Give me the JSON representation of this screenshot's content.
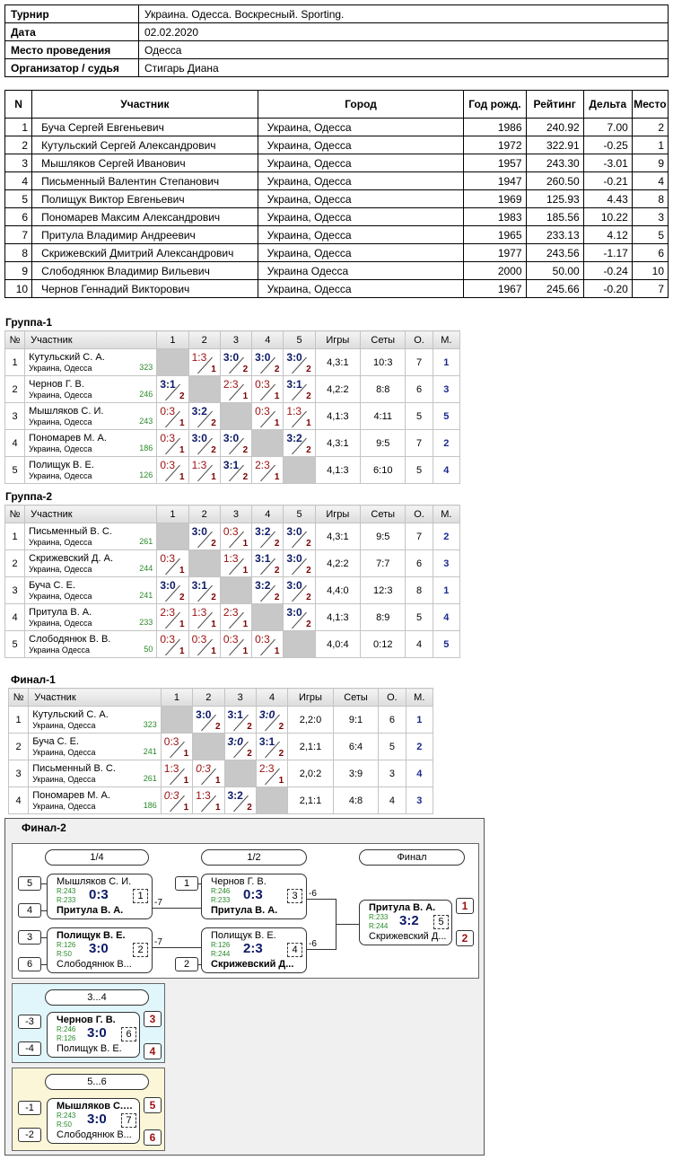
{
  "info": {
    "rows": [
      {
        "k": "Турнир",
        "v": "Украина. Одесса. Воскресный. Sporting."
      },
      {
        "k": "Дата",
        "v": "02.02.2020"
      },
      {
        "k": "Место проведения",
        "v": "Одесса"
      },
      {
        "k": "Организатор / судья",
        "v": "Стигарь Диана"
      }
    ]
  },
  "participants": {
    "headers": [
      "N",
      "Участник",
      "Город",
      "Год рожд.",
      "Рейтинг",
      "Дельта",
      "Место"
    ],
    "rows": [
      [
        "1",
        "Буча Сергей Евгеньевич",
        "Украина, Одесса",
        "1986",
        "240.92",
        "7.00",
        "2"
      ],
      [
        "2",
        "Кутульский Сергей Александрович",
        "Украина, Одесса",
        "1972",
        "322.91",
        "-0.25",
        "1"
      ],
      [
        "3",
        "Мышляков Сергей Иванович",
        "Украина, Одесса",
        "1957",
        "243.30",
        "-3.01",
        "9"
      ],
      [
        "4",
        "Письменный Валентин Степанович",
        "Украина, Одесса",
        "1947",
        "260.50",
        "-0.21",
        "4"
      ],
      [
        "5",
        "Полищук Виктор Евгеньевич",
        "Украина, Одесса",
        "1969",
        "125.93",
        "4.43",
        "8"
      ],
      [
        "6",
        "Пономарев Максим Александрович",
        "Украина, Одесса",
        "1983",
        "185.56",
        "10.22",
        "3"
      ],
      [
        "7",
        "Притула Владимир Андреевич",
        "Украина, Одесса",
        "1965",
        "233.13",
        "4.12",
        "5"
      ],
      [
        "8",
        "Скрижевский Дмитрий Александрович",
        "Украина, Одесса",
        "1977",
        "243.56",
        "-1.17",
        "6"
      ],
      [
        "9",
        "Слободянюк Владимир Вильевич",
        "Украина Одесса",
        "2000",
        "50.00",
        "-0.24",
        "10"
      ],
      [
        "10",
        "Чернов Геннадий Викторович",
        "Украина, Одесса",
        "1967",
        "245.66",
        "-0.20",
        "7"
      ]
    ]
  },
  "groups": [
    {
      "title": "Группа-1",
      "headers": [
        "№",
        "Участник",
        "1",
        "2",
        "3",
        "4",
        "5",
        "Игры",
        "Сеты",
        "О.",
        "М."
      ],
      "rows": [
        {
          "n": "1",
          "name": "Кутульский С. А.",
          "city": "Украина, Одесса",
          "rating": "323",
          "cells": [
            null,
            [
              "1:3",
              "1",
              "l"
            ],
            [
              "3:0",
              "2",
              "w"
            ],
            [
              "3:0",
              "2",
              "w"
            ],
            [
              "3:0",
              "2",
              "w"
            ]
          ],
          "games": "4,3:1",
          "sets": "10:3",
          "pts": "7",
          "place": "1"
        },
        {
          "n": "2",
          "name": "Чернов Г. В.",
          "city": "Украина, Одесса",
          "rating": "246",
          "cells": [
            [
              "3:1",
              "2",
              "w"
            ],
            null,
            [
              "2:3",
              "1",
              "l"
            ],
            [
              "0:3",
              "1",
              "l"
            ],
            [
              "3:1",
              "2",
              "w"
            ]
          ],
          "games": "4,2:2",
          "sets": "8:8",
          "pts": "6",
          "place": "3"
        },
        {
          "n": "3",
          "name": "Мышляков С. И.",
          "city": "Украина, Одесса",
          "rating": "243",
          "cells": [
            [
              "0:3",
              "1",
              "l"
            ],
            [
              "3:2",
              "2",
              "w"
            ],
            null,
            [
              "0:3",
              "1",
              "l"
            ],
            [
              "1:3",
              "1",
              "l"
            ]
          ],
          "games": "4,1:3",
          "sets": "4:11",
          "pts": "5",
          "place": "5"
        },
        {
          "n": "4",
          "name": "Пономарев М. А.",
          "city": "Украина, Одесса",
          "rating": "186",
          "cells": [
            [
              "0:3",
              "1",
              "l"
            ],
            [
              "3:0",
              "2",
              "w"
            ],
            [
              "3:0",
              "2",
              "w"
            ],
            null,
            [
              "3:2",
              "2",
              "w"
            ]
          ],
          "games": "4,3:1",
          "sets": "9:5",
          "pts": "7",
          "place": "2"
        },
        {
          "n": "5",
          "name": "Полищук В. Е.",
          "city": "Украина, Одесса",
          "rating": "126",
          "cells": [
            [
              "0:3",
              "1",
              "l"
            ],
            [
              "1:3",
              "1",
              "l"
            ],
            [
              "3:1",
              "2",
              "w"
            ],
            [
              "2:3",
              "1",
              "l"
            ],
            null
          ],
          "games": "4,1:3",
          "sets": "6:10",
          "pts": "5",
          "place": "4"
        }
      ]
    },
    {
      "title": "Группа-2",
      "headers": [
        "№",
        "Участник",
        "1",
        "2",
        "3",
        "4",
        "5",
        "Игры",
        "Сеты",
        "О.",
        "М."
      ],
      "rows": [
        {
          "n": "1",
          "name": "Письменный В. С.",
          "city": "Украина, Одесса",
          "rating": "261",
          "cells": [
            null,
            [
              "3:0",
              "2",
              "w"
            ],
            [
              "0:3",
              "1",
              "l"
            ],
            [
              "3:2",
              "2",
              "w"
            ],
            [
              "3:0",
              "2",
              "w"
            ]
          ],
          "games": "4,3:1",
          "sets": "9:5",
          "pts": "7",
          "place": "2"
        },
        {
          "n": "2",
          "name": "Скрижевский Д. А.",
          "city": "Украина, Одесса",
          "rating": "244",
          "cells": [
            [
              "0:3",
              "1",
              "l"
            ],
            null,
            [
              "1:3",
              "1",
              "l"
            ],
            [
              "3:1",
              "2",
              "w"
            ],
            [
              "3:0",
              "2",
              "w"
            ]
          ],
          "games": "4,2:2",
          "sets": "7:7",
          "pts": "6",
          "place": "3"
        },
        {
          "n": "3",
          "name": "Буча С. Е.",
          "city": "Украина, Одесса",
          "rating": "241",
          "cells": [
            [
              "3:0",
              "2",
              "w"
            ],
            [
              "3:1",
              "2",
              "w"
            ],
            null,
            [
              "3:2",
              "2",
              "w"
            ],
            [
              "3:0",
              "2",
              "w"
            ]
          ],
          "games": "4,4:0",
          "sets": "12:3",
          "pts": "8",
          "place": "1"
        },
        {
          "n": "4",
          "name": "Притула В. А.",
          "city": "Украина, Одесса",
          "rating": "233",
          "cells": [
            [
              "2:3",
              "1",
              "l"
            ],
            [
              "1:3",
              "1",
              "l"
            ],
            [
              "2:3",
              "1",
              "l"
            ],
            null,
            [
              "3:0",
              "2",
              "w"
            ]
          ],
          "games": "4,1:3",
          "sets": "8:9",
          "pts": "5",
          "place": "4"
        },
        {
          "n": "5",
          "name": "Слободянюк В. В.",
          "city": "Украина Одесса",
          "rating": "50",
          "cells": [
            [
              "0:3",
              "1",
              "l"
            ],
            [
              "0:3",
              "1",
              "l"
            ],
            [
              "0:3",
              "1",
              "l"
            ],
            [
              "0:3",
              "1",
              "l"
            ],
            null
          ],
          "games": "4,0:4",
          "sets": "0:12",
          "pts": "4",
          "place": "5"
        }
      ]
    },
    {
      "title": "Финал-1",
      "headers": [
        "№",
        "Участник",
        "1",
        "2",
        "3",
        "4",
        "Игры",
        "Сеты",
        "О.",
        "М."
      ],
      "rows": [
        {
          "n": "1",
          "name": "Кутульский С. А.",
          "city": "Украина, Одесса",
          "rating": "323",
          "cells": [
            null,
            [
              "3:0",
              "2",
              "w"
            ],
            [
              "3:1",
              "2",
              "w"
            ],
            [
              "3:0",
              "2",
              "wt"
            ]
          ],
          "games": "2,2:0",
          "sets": "9:1",
          "pts": "6",
          "place": "1"
        },
        {
          "n": "2",
          "name": "Буча С. Е.",
          "city": "Украина, Одесса",
          "rating": "241",
          "cells": [
            [
              "0:3",
              "1",
              "l"
            ],
            null,
            [
              "3:0",
              "2",
              "wt"
            ],
            [
              "3:1",
              "2",
              "w"
            ]
          ],
          "games": "2,1:1",
          "sets": "6:4",
          "pts": "5",
          "place": "2"
        },
        {
          "n": "3",
          "name": "Письменный В. С.",
          "city": "Украина, Одесса",
          "rating": "261",
          "cells": [
            [
              "1:3",
              "1",
              "l"
            ],
            [
              "0:3",
              "1",
              "lt"
            ],
            null,
            [
              "2:3",
              "1",
              "l"
            ]
          ],
          "games": "2,0:2",
          "sets": "3:9",
          "pts": "3",
          "place": "4"
        },
        {
          "n": "4",
          "name": "Пономарев М. А.",
          "city": "Украина, Одесса",
          "rating": "186",
          "cells": [
            [
              "0:3",
              "1",
              "lt"
            ],
            [
              "1:3",
              "1",
              "l"
            ],
            [
              "3:2",
              "2",
              "w"
            ],
            null
          ],
          "games": "2,1:1",
          "sets": "4:8",
          "pts": "4",
          "place": "3"
        }
      ]
    }
  ],
  "final2": {
    "title": "Финал-2",
    "rounds": [
      "1/4",
      "1/2",
      "Финал"
    ],
    "third": "3...4",
    "fifth": "5...6",
    "matches": [
      {
        "s1": "5",
        "s2": "4",
        "p1": "Мышляков С. И.",
        "p2": "Притула В. А.",
        "r1": "R:243",
        "r2": "R:233",
        "score": "0:3",
        "num": "1",
        "side": "-7"
      },
      {
        "s1": "3",
        "s2": "6",
        "p1": "Полищук В. Е.",
        "p2": "Слободянюк В...",
        "r1": "R:126",
        "r2": "R:50",
        "score": "3:0",
        "num": "2",
        "side": "-7"
      },
      {
        "s1": "1",
        "s2": "",
        "p1": "Чернов Г. В.",
        "p2": "Притула В. А.",
        "r1": "R:246",
        "r2": "R:233",
        "score": "0:3",
        "num": "3",
        "side": "-6"
      },
      {
        "s1": "",
        "s2": "2",
        "p1": "Полищук В. Е.",
        "p2": "Скрижевский Д...",
        "r1": "R:126",
        "r2": "R:244",
        "score": "2:3",
        "num": "4",
        "side": "-6"
      },
      {
        "p1": "Притула В. А.",
        "p2": "Скрижевский Д...",
        "r1": "R:233",
        "r2": "R:244",
        "score": "3:2",
        "num": "5",
        "b1": "1",
        "b2": "2"
      },
      {
        "s1": "-3",
        "s2": "-4",
        "p1": "Чернов Г. В.",
        "p2": "Полищук В. Е.",
        "r1": "R:246",
        "r2": "R:126",
        "score": "3:0",
        "num": "6",
        "b1": "3",
        "b2": "4"
      },
      {
        "s1": "-1",
        "s2": "-2",
        "p1": "Мышляков С. И.",
        "p2": "Слободянюк В...",
        "r1": "R:243",
        "r2": "R:50",
        "score": "3:0",
        "num": "7",
        "b1": "5",
        "b2": "6"
      }
    ],
    "colors": {
      "third_bg": "#e0f6fa",
      "fifth_bg": "#fbf6d8",
      "panel_bg": "#f0f0f0"
    }
  }
}
